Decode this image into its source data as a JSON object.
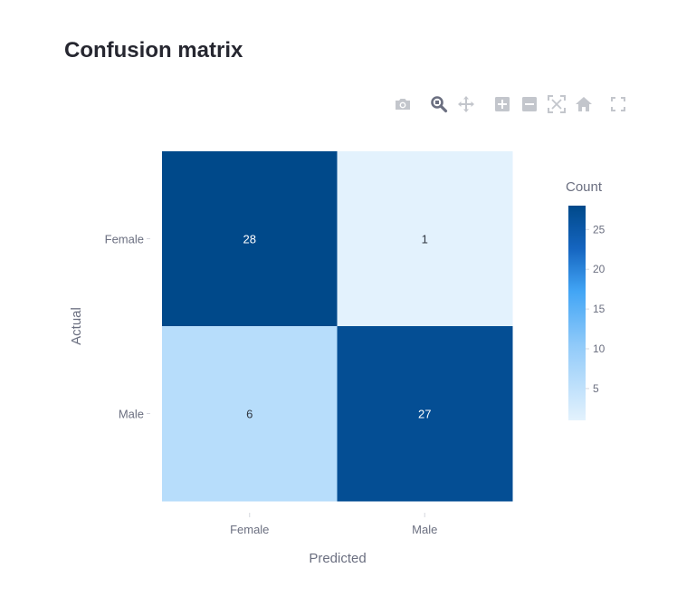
{
  "title": "Confusion matrix",
  "toolbar": {
    "icons": [
      "camera-icon",
      "zoom-icon",
      "pan-icon",
      "zoom-in-icon",
      "zoom-out-icon",
      "autoscale-icon",
      "home-icon",
      "fullscreen-icon"
    ]
  },
  "colors": {
    "low": "#e3f2fd",
    "mid": "#42a5f5",
    "high": "#00498a",
    "text_dark": "#2f3640",
    "text_light": "#ffffff"
  },
  "chart_data": {
    "type": "heatmap",
    "title": "Confusion matrix",
    "xlabel": "Predicted",
    "ylabel": "Actual",
    "x": [
      "Female",
      "Male"
    ],
    "y": [
      "Female",
      "Male"
    ],
    "z": [
      [
        28,
        1
      ],
      [
        6,
        27
      ]
    ],
    "colorbar": {
      "title": "Count",
      "range": [
        1,
        28
      ],
      "ticks": [
        5,
        10,
        15,
        20,
        25
      ]
    }
  }
}
